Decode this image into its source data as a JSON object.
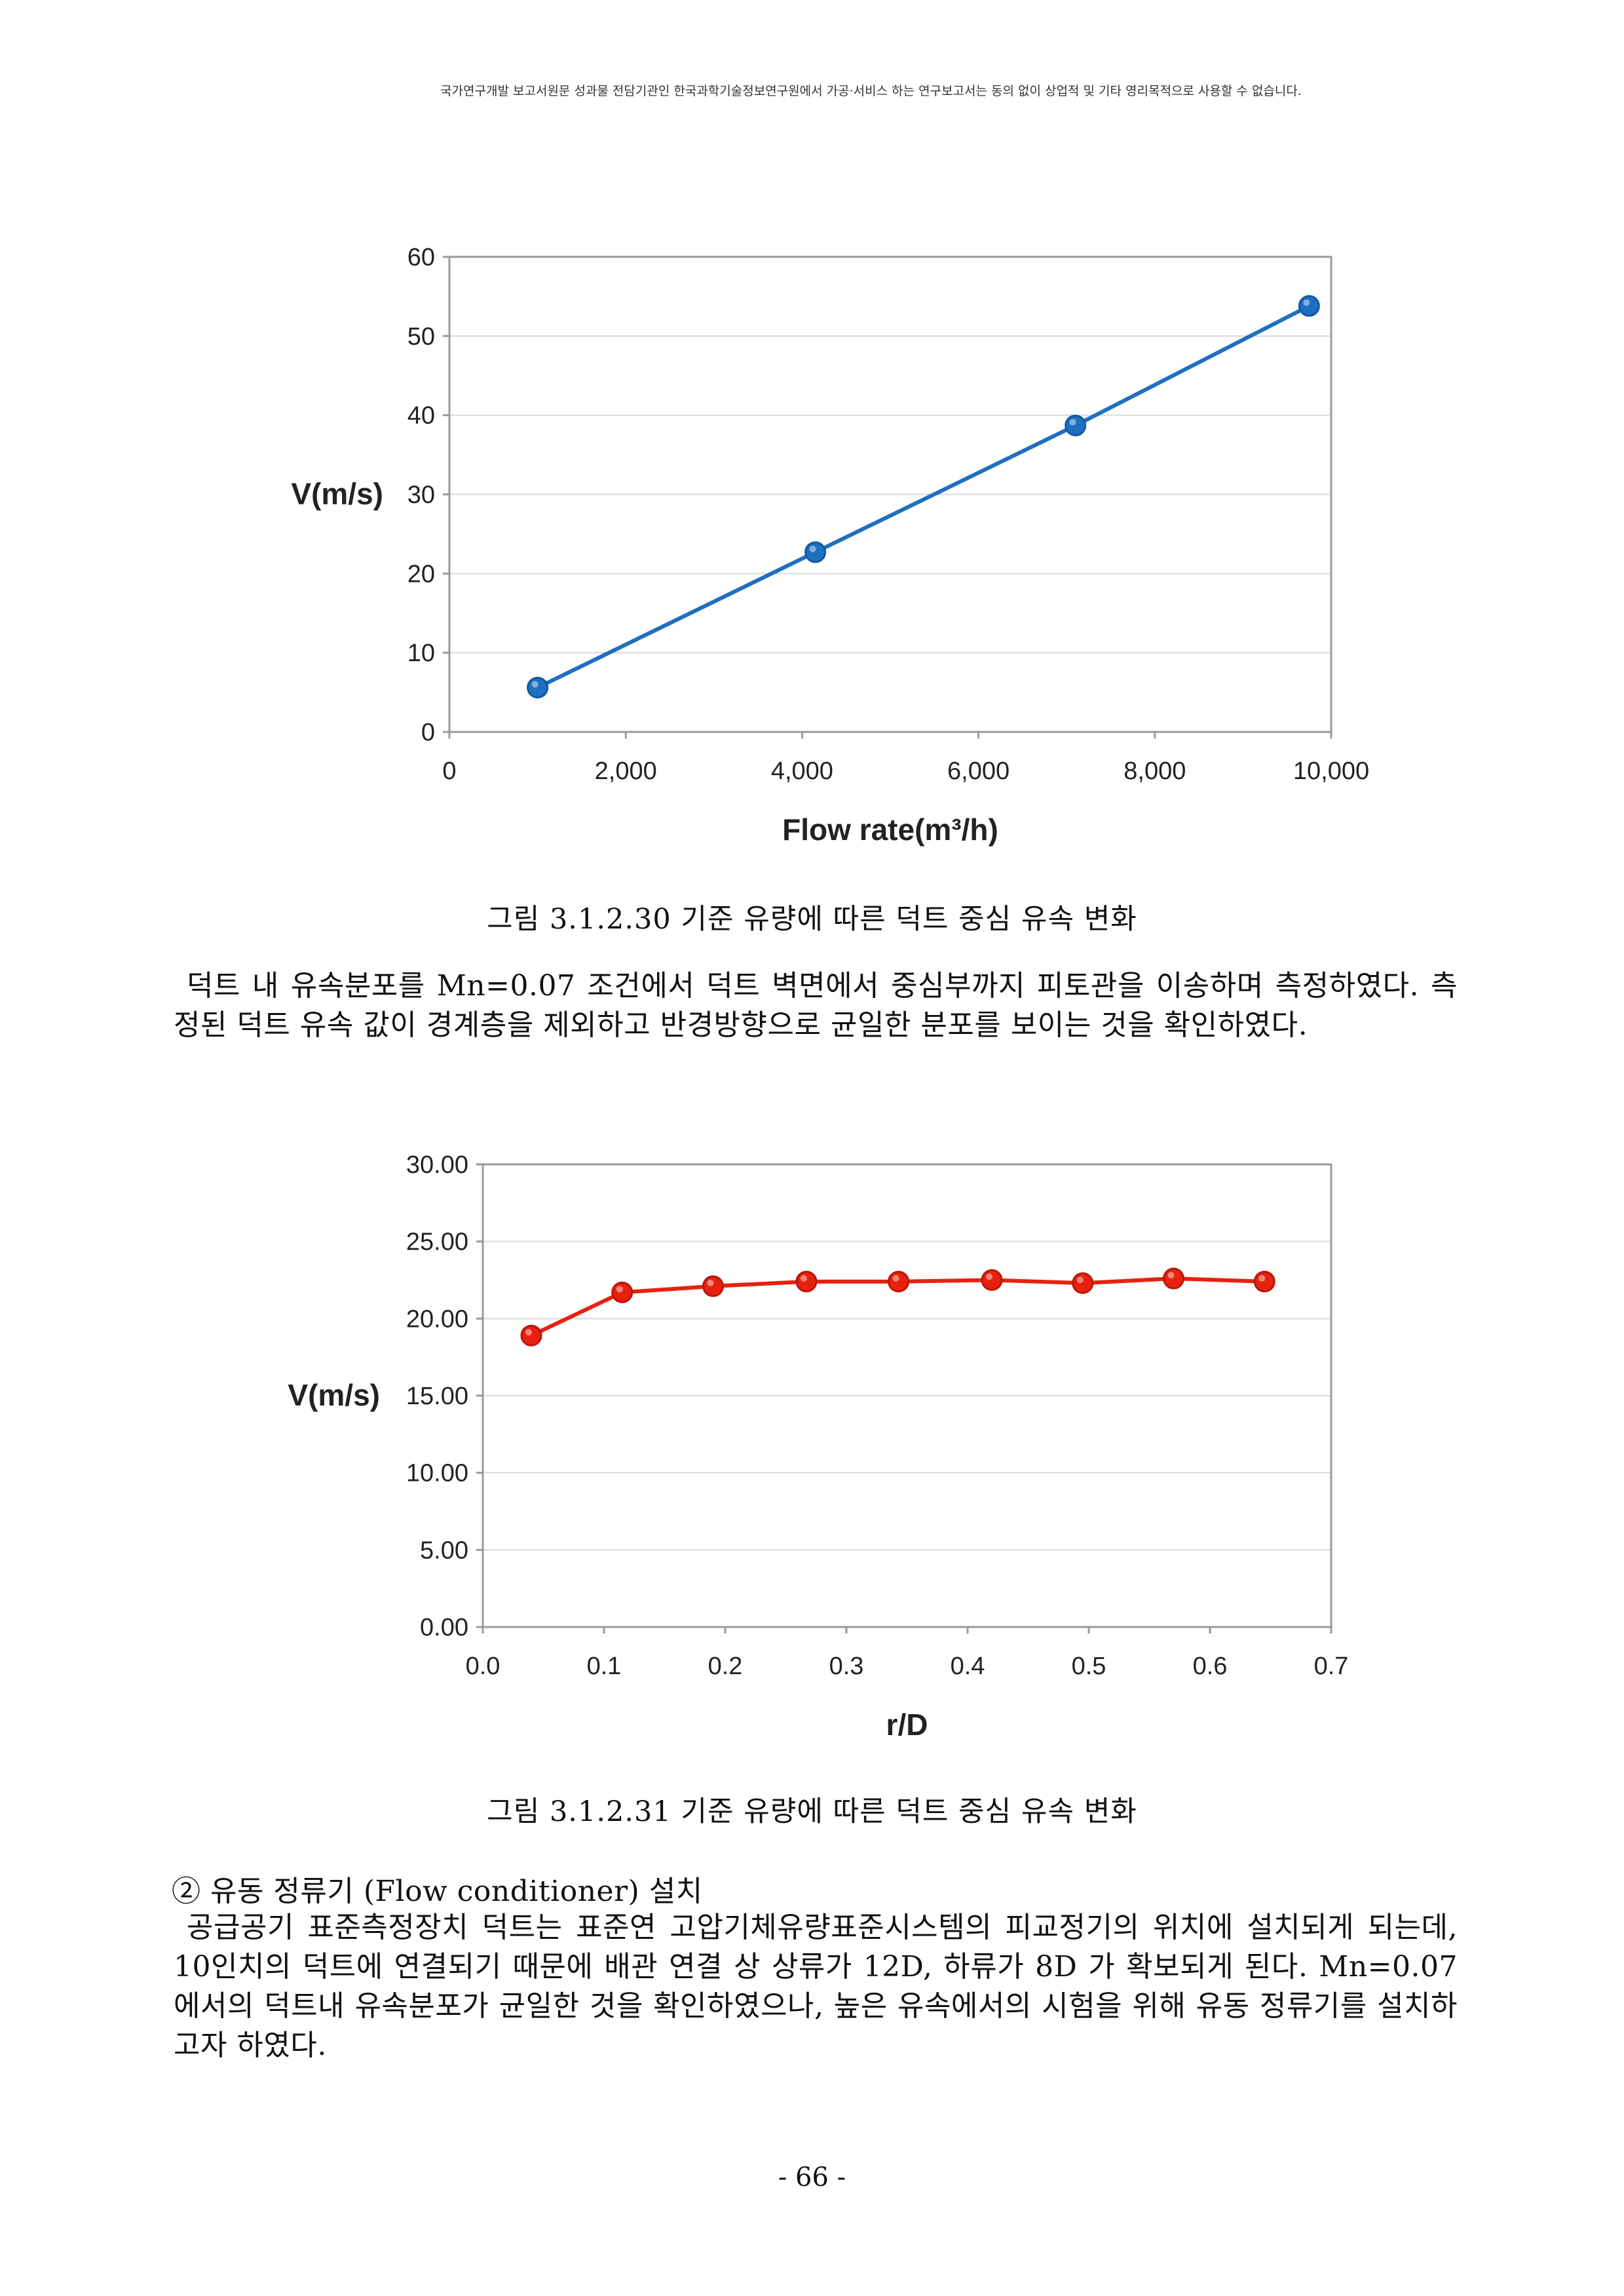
{
  "header": {
    "note": "국가연구개발 보고서원문 성과물 전담기관인 한국과학기술정보연구원에서 가공·서비스 하는 연구보고서는 동의 없이 상업적 및 기타 영리목적으로 사용할 수 없습니다."
  },
  "figure1": {
    "caption": "그림 3.1.2.30 기준 유량에 따른 덕트 중심 유속 변화",
    "chart_data": {
      "type": "line",
      "xlabel": "Flow rate(m³/h)",
      "ylabel": "V(m/s)",
      "xlim": [
        0,
        10000
      ],
      "ylim": [
        0,
        60
      ],
      "x_ticks": [
        "0",
        "2,000",
        "4,000",
        "6,000",
        "8,000",
        "10,000"
      ],
      "y_ticks": [
        "0",
        "10",
        "20",
        "30",
        "40",
        "50",
        "60"
      ],
      "grid": true,
      "series": [
        {
          "color": "#1f6fc0",
          "points": [
            {
              "x": 1000,
              "y": 5.6
            },
            {
              "x": 4150,
              "y": 22.7
            },
            {
              "x": 7100,
              "y": 38.7
            },
            {
              "x": 9750,
              "y": 53.8
            }
          ]
        }
      ]
    }
  },
  "paragraph1": {
    "lines": [
      "덕트 내 유속분포를 Mn=0.07 조건에서 덕트 벽면에서 중심부까지 피토관을 이송하며 측정하였다. 측정된 덕트 유속 값이 경계층을 제외하고 반경방향으로 균일한 분포를 보이는 것을 확인하였다."
    ]
  },
  "figure2": {
    "caption": "그림 3.1.2.31 기준 유량에 따른 덕트 중심 유속 변화",
    "chart_data": {
      "type": "line",
      "xlabel": "r/D",
      "ylabel": "V(m/s)",
      "xlim": [
        0,
        0.7
      ],
      "ylim": [
        0,
        30
      ],
      "x_ticks": [
        "0.0",
        "0.1",
        "0.2",
        "0.3",
        "0.4",
        "0.5",
        "0.6",
        "0.7"
      ],
      "y_ticks": [
        "0.00",
        "5.00",
        "10.00",
        "15.00",
        "20.00",
        "25.00",
        "30.00"
      ],
      "grid": true,
      "series": [
        {
          "color": "#e8210f",
          "points": [
            {
              "x": 0.04,
              "y": 18.9
            },
            {
              "x": 0.115,
              "y": 21.7
            },
            {
              "x": 0.19,
              "y": 22.1
            },
            {
              "x": 0.267,
              "y": 22.4
            },
            {
              "x": 0.343,
              "y": 22.4
            },
            {
              "x": 0.42,
              "y": 22.5
            },
            {
              "x": 0.495,
              "y": 22.3
            },
            {
              "x": 0.57,
              "y": 22.6
            },
            {
              "x": 0.645,
              "y": 22.4
            }
          ]
        }
      ]
    }
  },
  "section": {
    "heading": "② 유동 정류기 (Flow conditioner) 설치",
    "body": "공급공기 표준측정장치 덕트는 표준연 고압기체유량표준시스템의 피교정기의 위치에 설치되게 되는데, 10인치의 덕트에 연결되기 때문에 배관 연결 상 상류가 12D, 하류가 8D 가 확보되게 된다. Mn=0.07에서의 덕트내 유속분포가 균일한 것을 확인하였으나, 높은 유속에서의 시험을 위해 유동 정류기를 설치하고자 하였다."
  },
  "page_number": "- 66 -"
}
